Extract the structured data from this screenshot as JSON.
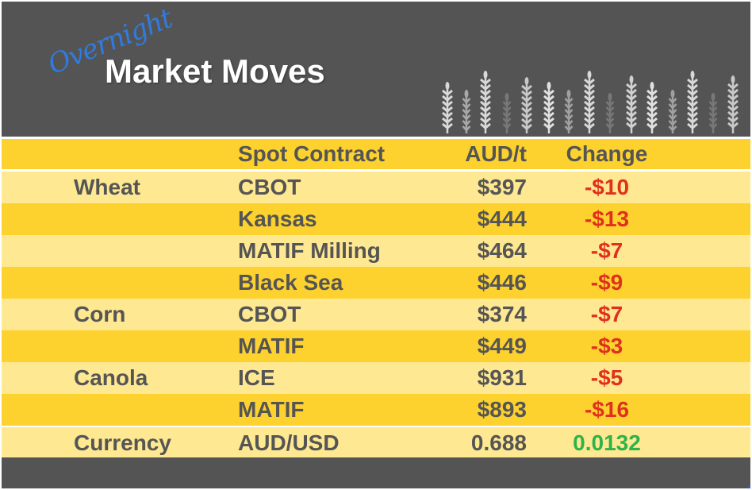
{
  "header": {
    "overnight": "Overnight",
    "title": "Market Moves",
    "icon": "wheat-stalks"
  },
  "columns": [
    "",
    "Spot Contract",
    "AUD/t",
    "Change"
  ],
  "rows": [
    {
      "commodity": "Wheat",
      "contract": "CBOT",
      "price": "$397",
      "change": "-$10",
      "direction": "down"
    },
    {
      "commodity": "",
      "contract": "Kansas",
      "price": "$444",
      "change": "-$13",
      "direction": "down"
    },
    {
      "commodity": "",
      "contract": "MATIF Milling",
      "price": "$464",
      "change": "-$7",
      "direction": "down"
    },
    {
      "commodity": "",
      "contract": "Black Sea",
      "price": "$446",
      "change": "-$9",
      "direction": "down"
    },
    {
      "commodity": "Corn",
      "contract": "CBOT",
      "price": "$374",
      "change": "-$7",
      "direction": "down"
    },
    {
      "commodity": "",
      "contract": "MATIF",
      "price": "$449",
      "change": "-$3",
      "direction": "down"
    },
    {
      "commodity": "Canola",
      "contract": "ICE",
      "price": "$931",
      "change": "-$5",
      "direction": "down"
    },
    {
      "commodity": "",
      "contract": "MATIF",
      "price": "$893",
      "change": "-$16",
      "direction": "down"
    }
  ],
  "currency": {
    "commodity": "Currency",
    "contract": "AUD/USD",
    "price": "0.688",
    "change": "0.0132",
    "direction": "up"
  },
  "colors": {
    "header_bg": "#545454",
    "row_dark": "#fdd22e",
    "row_light": "#fee891",
    "negative": "#e0301e",
    "positive": "#2db34a",
    "overnight": "#2f7be0"
  }
}
